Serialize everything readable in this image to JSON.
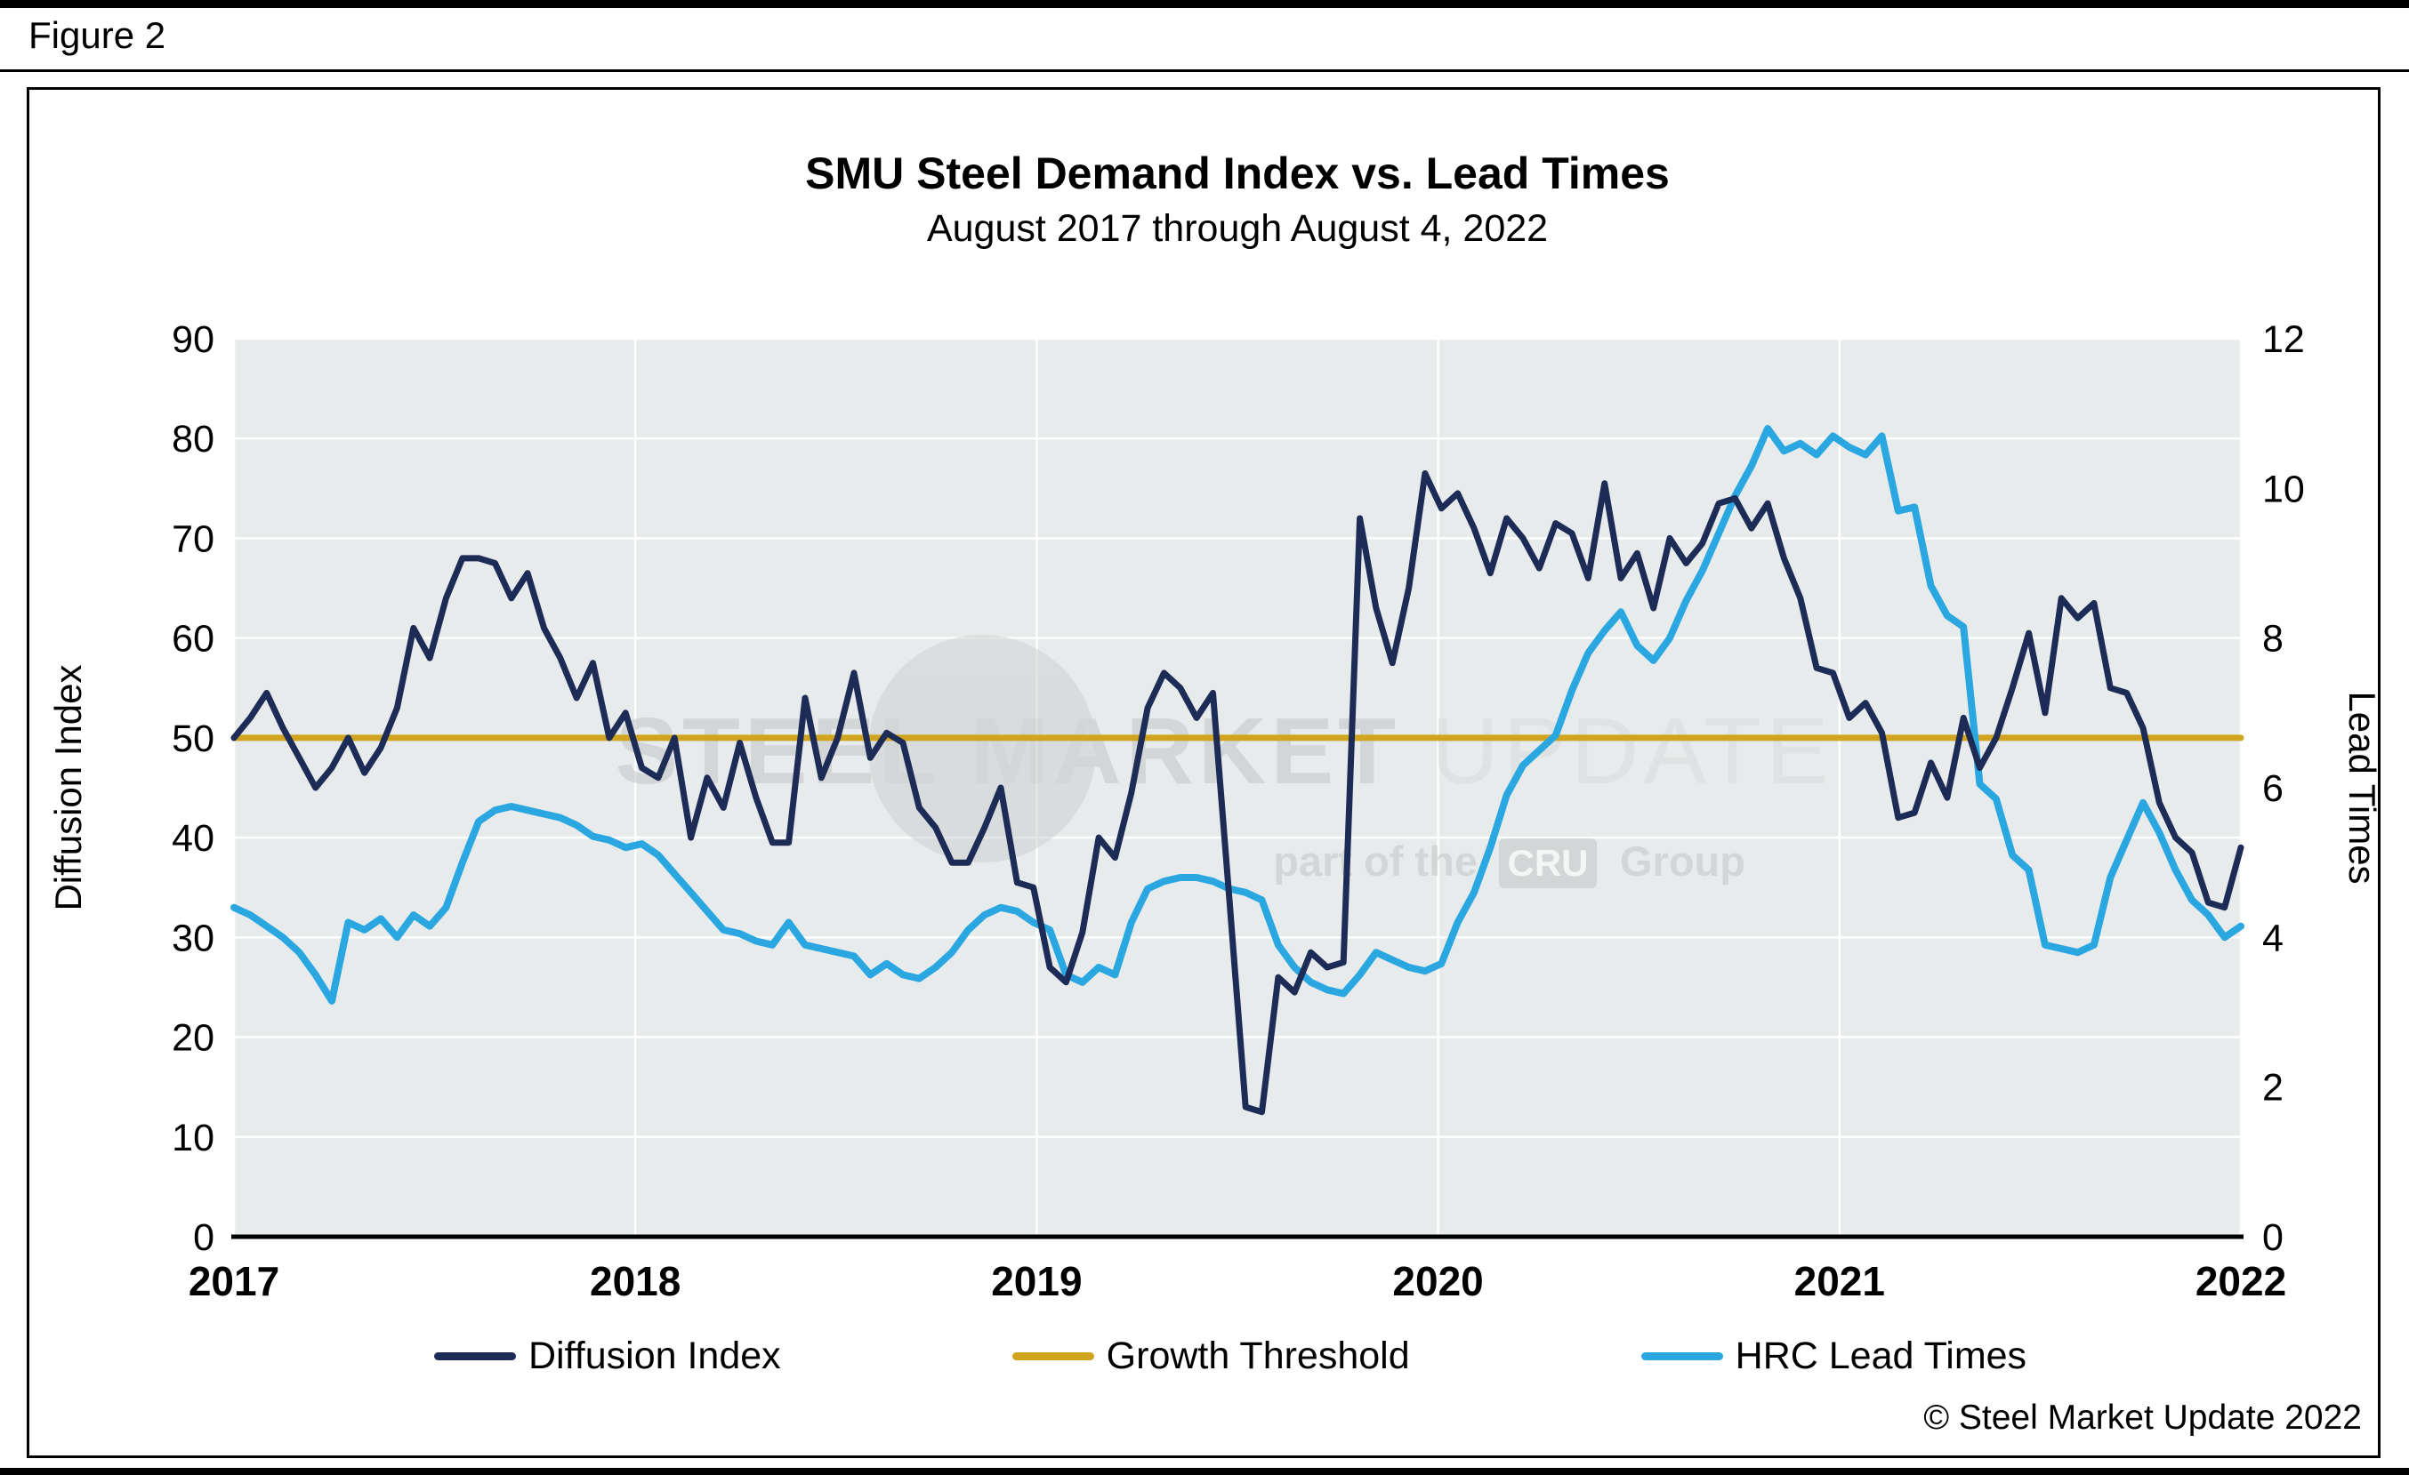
{
  "figure_label": "Figure 2",
  "header": {
    "title": "SMU Steel Demand Index vs. Lead Times",
    "subtitle": "August 2017 through August 4, 2022"
  },
  "footer": {
    "copyright": "© Steel Market Update 2022"
  },
  "watermark": {
    "line1_strong": "STEEL MARKET",
    "line1_light": "UPDATE",
    "line2_prefix": "part of the",
    "line2_badge": "CRU",
    "line2_suffix": "Group"
  },
  "colors": {
    "plot_bg": "#e8ebeb",
    "grid": "#ffffff",
    "axis": "#000000",
    "diffusion": "#1d2b57",
    "threshold": "#d1a41f",
    "lead_times": "#2aa7e0"
  },
  "legend": [
    {
      "label": "Diffusion Index",
      "color": "#1d2b57"
    },
    {
      "label": "Growth Threshold",
      "color": "#d1a41f"
    },
    {
      "label": "HRC Lead Times",
      "color": "#2aa7e0"
    }
  ],
  "chart_data": {
    "type": "line",
    "title": "SMU Steel Demand Index vs. Lead Times",
    "subtitle": "August 2017 through August 4, 2022",
    "grid": true,
    "x_axis": {
      "range": [
        2017,
        2022
      ],
      "ticks": [
        "2017",
        "2018",
        "2019",
        "2020",
        "2021",
        "2022"
      ]
    },
    "left_axis": {
      "label": "Diffusion Index",
      "range": [
        0,
        90
      ],
      "tick_step": 10
    },
    "right_axis": {
      "label": "Lead Times",
      "range": [
        0,
        12
      ],
      "tick_step": 2
    },
    "series": [
      {
        "name": "Growth Threshold",
        "axis": "left",
        "color": "#d1a41f",
        "width": 7,
        "constant": 50
      },
      {
        "name": "HRC Lead Times",
        "axis": "right",
        "color": "#2aa7e0",
        "width": 8,
        "values": [
          4.4,
          4.3,
          4.15,
          4.0,
          3.8,
          3.5,
          3.15,
          4.2,
          4.1,
          4.25,
          4.0,
          4.3,
          4.15,
          4.4,
          5.0,
          5.55,
          5.7,
          5.75,
          5.7,
          5.65,
          5.6,
          5.5,
          5.35,
          5.3,
          5.2,
          5.25,
          5.1,
          4.85,
          4.6,
          4.35,
          4.1,
          4.05,
          3.95,
          3.9,
          4.2,
          3.9,
          3.85,
          3.8,
          3.75,
          3.5,
          3.65,
          3.5,
          3.45,
          3.6,
          3.8,
          4.1,
          4.3,
          4.4,
          4.35,
          4.2,
          4.1,
          3.5,
          3.4,
          3.6,
          3.5,
          4.2,
          4.65,
          4.75,
          4.8,
          4.8,
          4.75,
          4.65,
          4.6,
          4.5,
          3.9,
          3.6,
          3.4,
          3.3,
          3.25,
          3.5,
          3.8,
          3.7,
          3.6,
          3.55,
          3.65,
          4.2,
          4.6,
          5.2,
          5.9,
          6.3,
          6.5,
          6.7,
          7.3,
          7.8,
          8.1,
          8.35,
          7.9,
          7.7,
          8.0,
          8.5,
          8.9,
          9.4,
          9.9,
          10.3,
          10.8,
          10.5,
          10.6,
          10.45,
          10.7,
          10.55,
          10.45,
          10.7,
          9.7,
          9.75,
          8.7,
          8.3,
          8.15,
          6.05,
          5.85,
          5.1,
          4.9,
          3.9,
          3.85,
          3.8,
          3.9,
          4.8,
          5.3,
          5.8,
          5.4,
          4.9,
          4.5,
          4.3,
          4.0,
          4.15
        ]
      },
      {
        "name": "Diffusion Index",
        "axis": "left",
        "color": "#1d2b57",
        "width": 7,
        "values": [
          50,
          52,
          54.5,
          51,
          48,
          45,
          47,
          50,
          46.5,
          49,
          53,
          61,
          58,
          64,
          68,
          68,
          67.5,
          64,
          66.5,
          61,
          58,
          54,
          57.5,
          50,
          52.5,
          47,
          46,
          50,
          40,
          46,
          43,
          49.5,
          44,
          39.5,
          39.5,
          54,
          46,
          50,
          56.5,
          48,
          50.5,
          49.5,
          43,
          41,
          37.5,
          37.5,
          41,
          45,
          35.5,
          35,
          27,
          25.5,
          30.5,
          40,
          38,
          44.5,
          53,
          56.5,
          55,
          52,
          54.5,
          34,
          13,
          12.5,
          26,
          24.5,
          28.5,
          27,
          27.5,
          72,
          63,
          57.5,
          65,
          76.5,
          73,
          74.5,
          71,
          66.5,
          72,
          70,
          67,
          71.5,
          70.5,
          66,
          75.5,
          66,
          68.5,
          63,
          70,
          67.5,
          69.5,
          73.5,
          74,
          71,
          73.5,
          68,
          64,
          57,
          56.5,
          52,
          53.5,
          50.5,
          42,
          42.5,
          47.5,
          44,
          52,
          47,
          50,
          55,
          60.5,
          52.5,
          64,
          62,
          63.5,
          55,
          54.5,
          51,
          43.5,
          40,
          38.5,
          33.5,
          33,
          39
        ]
      }
    ]
  }
}
